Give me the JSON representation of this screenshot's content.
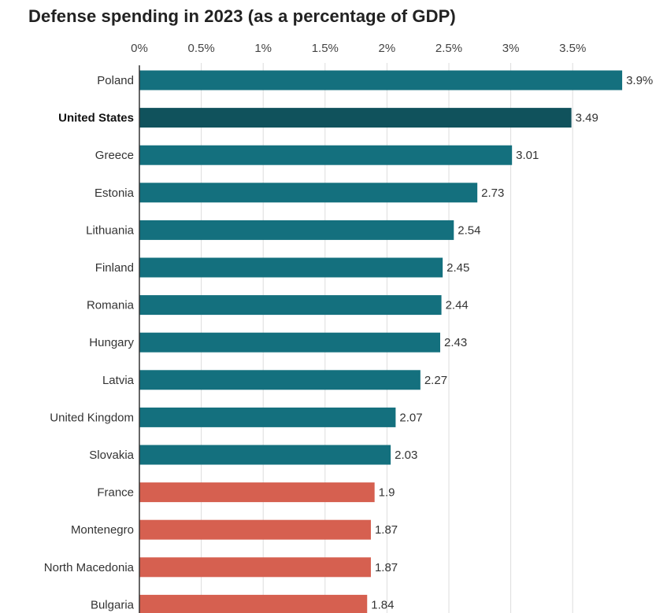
{
  "chart_data": {
    "type": "bar",
    "orientation": "horizontal",
    "title": "Defense spending in 2023 (as a percentage of GDP)",
    "xlim": [
      0,
      3.9
    ],
    "grid": true,
    "x_ticks": [
      {
        "value": 0,
        "label": "0%"
      },
      {
        "value": 0.5,
        "label": "0.5%"
      },
      {
        "value": 1,
        "label": "1%"
      },
      {
        "value": 1.5,
        "label": "1.5%"
      },
      {
        "value": 2,
        "label": "2%"
      },
      {
        "value": 2.5,
        "label": "2.5%"
      },
      {
        "value": 3,
        "label": "3%"
      },
      {
        "value": 3.5,
        "label": "3.5%"
      }
    ],
    "bars": [
      {
        "category": "Poland",
        "value": 3.9,
        "label": "3.9%",
        "group": "above"
      },
      {
        "category": "United States",
        "value": 3.49,
        "label": "3.49",
        "group": "highlight"
      },
      {
        "category": "Greece",
        "value": 3.01,
        "label": "3.01",
        "group": "above"
      },
      {
        "category": "Estonia",
        "value": 2.73,
        "label": "2.73",
        "group": "above"
      },
      {
        "category": "Lithuania",
        "value": 2.54,
        "label": "2.54",
        "group": "above"
      },
      {
        "category": "Finland",
        "value": 2.45,
        "label": "2.45",
        "group": "above"
      },
      {
        "category": "Romania",
        "value": 2.44,
        "label": "2.44",
        "group": "above"
      },
      {
        "category": "Hungary",
        "value": 2.43,
        "label": "2.43",
        "group": "above"
      },
      {
        "category": "Latvia",
        "value": 2.27,
        "label": "2.27",
        "group": "above"
      },
      {
        "category": "United Kingdom",
        "value": 2.07,
        "label": "2.07",
        "group": "above"
      },
      {
        "category": "Slovakia",
        "value": 2.03,
        "label": "2.03",
        "group": "above"
      },
      {
        "category": "France",
        "value": 1.9,
        "label": "1.9",
        "group": "below"
      },
      {
        "category": "Montenegro",
        "value": 1.87,
        "label": "1.87",
        "group": "below"
      },
      {
        "category": "North Macedonia",
        "value": 1.87,
        "label": "1.87",
        "group": "below"
      },
      {
        "category": "Bulgaria",
        "value": 1.84,
        "label": "1.84",
        "group": "below"
      }
    ],
    "colors": {
      "above": "#14707e",
      "highlight": "#10525c",
      "below": "#d66050",
      "grid": "#dddddd",
      "axis": "#333333"
    }
  }
}
